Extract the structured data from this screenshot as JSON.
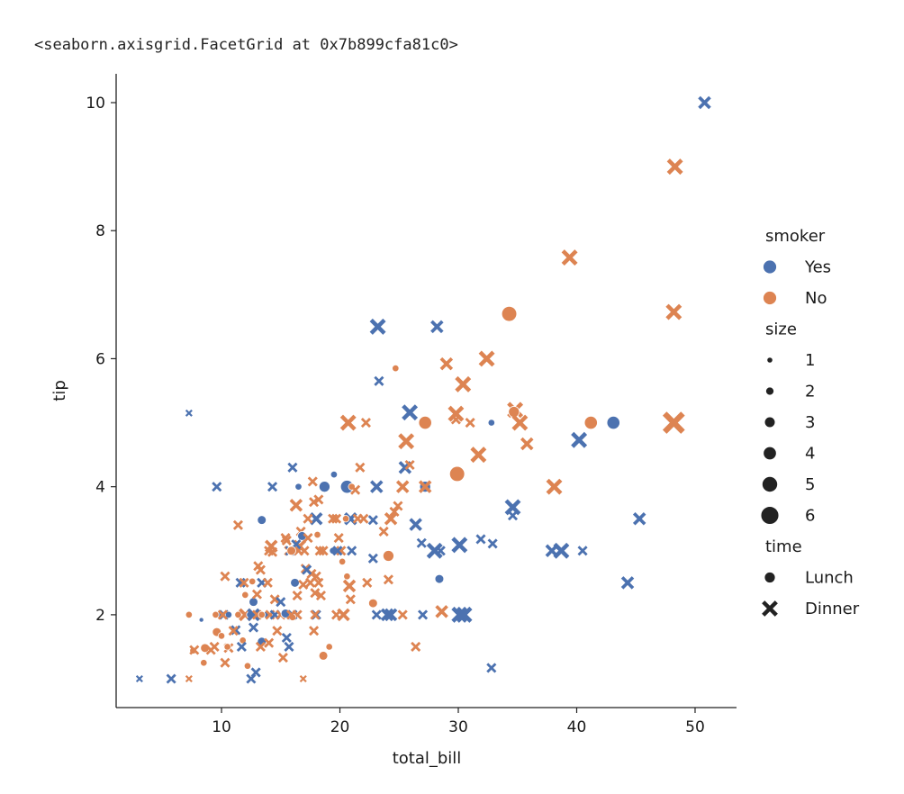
{
  "output_text": "<seaborn.axisgrid.FacetGrid at 0x7b899cfa81c0>",
  "colors": {
    "Yes": "#4c72b0",
    "No": "#dd8452",
    "legend_gray": "#222222"
  },
  "chart_data": {
    "type": "scatter",
    "xlabel": "total_bill",
    "ylabel": "tip",
    "xlim": [
      1.1,
      53.5
    ],
    "ylim": [
      0.55,
      10.45
    ],
    "xticks": [
      10,
      20,
      30,
      40,
      50
    ],
    "yticks": [
      2,
      4,
      6,
      8,
      10
    ],
    "grid": false,
    "legend_placement": "right",
    "fields": [
      "total_bill",
      "tip",
      "smoker",
      "size",
      "time"
    ],
    "legend": {
      "hue": {
        "title": "smoker",
        "entries": [
          "Yes",
          "No"
        ]
      },
      "size": {
        "title": "size",
        "entries": [
          "1",
          "2",
          "3",
          "4",
          "5",
          "6"
        ]
      },
      "style": {
        "title": "time",
        "entries": [
          "Lunch",
          "Dinner"
        ]
      }
    },
    "points": [
      [
        50.8,
        10.0,
        "Yes",
        3,
        "Dinner"
      ],
      [
        48.3,
        9.0,
        "No",
        4,
        "Dinner"
      ],
      [
        39.4,
        7.58,
        "No",
        4,
        "Dinner"
      ],
      [
        48.2,
        6.73,
        "No",
        4,
        "Dinner"
      ],
      [
        34.3,
        6.7,
        "No",
        6,
        "Lunch"
      ],
      [
        23.2,
        6.5,
        "Yes",
        4,
        "Dinner"
      ],
      [
        28.2,
        6.5,
        "Yes",
        3,
        "Dinner"
      ],
      [
        24.7,
        5.85,
        "No",
        2,
        "Lunch"
      ],
      [
        32.4,
        6.0,
        "No",
        4,
        "Dinner"
      ],
      [
        29.0,
        5.92,
        "No",
        3,
        "Dinner"
      ],
      [
        23.3,
        5.65,
        "Yes",
        2,
        "Dinner"
      ],
      [
        30.4,
        5.6,
        "No",
        4,
        "Dinner"
      ],
      [
        7.25,
        5.15,
        "Yes",
        1,
        "Dinner"
      ],
      [
        25.9,
        5.16,
        "Yes",
        4,
        "Dinner"
      ],
      [
        34.8,
        5.2,
        "No",
        4,
        "Dinner"
      ],
      [
        29.8,
        5.14,
        "No",
        4,
        "Dinner"
      ],
      [
        34.7,
        5.17,
        "No",
        4,
        "Lunch"
      ],
      [
        27.2,
        5.0,
        "No",
        5,
        "Lunch"
      ],
      [
        41.2,
        5.0,
        "No",
        5,
        "Lunch"
      ],
      [
        43.1,
        5.0,
        "Yes",
        5,
        "Lunch"
      ],
      [
        48.2,
        5.0,
        "No",
        6,
        "Dinner"
      ],
      [
        20.7,
        5.0,
        "No",
        4,
        "Dinner"
      ],
      [
        22.2,
        5.0,
        "No",
        2,
        "Dinner"
      ],
      [
        29.8,
        5.05,
        "No",
        2,
        "Dinner"
      ],
      [
        31.0,
        5.0,
        "No",
        2,
        "Dinner"
      ],
      [
        32.8,
        5.0,
        "Yes",
        2,
        "Lunch"
      ],
      [
        35.2,
        5.0,
        "No",
        4,
        "Dinner"
      ],
      [
        40.2,
        4.73,
        "Yes",
        4,
        "Dinner"
      ],
      [
        25.6,
        4.71,
        "No",
        4,
        "Dinner"
      ],
      [
        35.8,
        4.67,
        "No",
        3,
        "Dinner"
      ],
      [
        31.7,
        4.5,
        "No",
        4,
        "Dinner"
      ],
      [
        25.5,
        4.3,
        "Yes",
        3,
        "Dinner"
      ],
      [
        25.9,
        4.34,
        "No",
        2,
        "Dinner"
      ],
      [
        29.9,
        4.2,
        "No",
        6,
        "Lunch"
      ],
      [
        16.0,
        4.3,
        "Yes",
        2,
        "Dinner"
      ],
      [
        21.7,
        4.3,
        "No",
        2,
        "Dinner"
      ],
      [
        19.5,
        4.19,
        "Yes",
        2,
        "Lunch"
      ],
      [
        9.6,
        4.0,
        "Yes",
        2,
        "Dinner"
      ],
      [
        14.3,
        4.0,
        "Yes",
        2,
        "Dinner"
      ],
      [
        16.5,
        4.0,
        "Yes",
        2,
        "Lunch"
      ],
      [
        18.7,
        4.0,
        "Yes",
        4,
        "Lunch"
      ],
      [
        20.6,
        4.0,
        "Yes",
        5,
        "Lunch"
      ],
      [
        23.1,
        4.0,
        "Yes",
        3,
        "Dinner"
      ],
      [
        27.2,
        4.0,
        "Yes",
        4,
        "Lunch"
      ],
      [
        27.2,
        4.0,
        "No",
        3,
        "Dinner"
      ],
      [
        38.1,
        4.0,
        "No",
        4,
        "Dinner"
      ],
      [
        17.7,
        4.08,
        "No",
        2,
        "Dinner"
      ],
      [
        21.0,
        4.0,
        "No",
        2,
        "Lunch"
      ],
      [
        25.3,
        4.0,
        "No",
        3,
        "Dinner"
      ],
      [
        21.3,
        3.95,
        "No",
        2,
        "Dinner"
      ],
      [
        17.8,
        3.76,
        "No",
        2,
        "Dinner"
      ],
      [
        18.2,
        3.8,
        "No",
        2,
        "Dinner"
      ],
      [
        16.3,
        3.71,
        "No",
        3,
        "Dinner"
      ],
      [
        24.6,
        3.61,
        "No",
        2,
        "Dinner"
      ],
      [
        24.3,
        3.5,
        "No",
        3,
        "Dinner"
      ],
      [
        34.6,
        3.68,
        "Yes",
        4,
        "Dinner"
      ],
      [
        34.6,
        3.55,
        "Yes",
        2,
        "Dinner"
      ],
      [
        45.3,
        3.5,
        "Yes",
        3,
        "Dinner"
      ],
      [
        13.4,
        3.48,
        "Yes",
        3,
        "Lunch"
      ],
      [
        18.0,
        3.5,
        "Yes",
        3,
        "Dinner"
      ],
      [
        20.9,
        3.5,
        "Yes",
        3,
        "Dinner"
      ],
      [
        22.8,
        3.48,
        "Yes",
        2,
        "Dinner"
      ],
      [
        17.3,
        3.5,
        "No",
        2,
        "Dinner"
      ],
      [
        19.7,
        3.5,
        "No",
        2,
        "Dinner"
      ],
      [
        21.5,
        3.5,
        "No",
        2,
        "Dinner"
      ],
      [
        11.4,
        3.4,
        "No",
        2,
        "Dinner"
      ],
      [
        26.4,
        3.41,
        "Yes",
        3,
        "Dinner"
      ],
      [
        16.7,
        3.3,
        "No",
        2,
        "Dinner"
      ],
      [
        16.8,
        3.23,
        "Yes",
        3,
        "Lunch"
      ],
      [
        15.4,
        3.2,
        "No",
        2,
        "Dinner"
      ],
      [
        17.3,
        3.2,
        "No",
        2,
        "Dinner"
      ],
      [
        18.1,
        3.25,
        "No",
        2,
        "Lunch"
      ],
      [
        19.9,
        3.2,
        "No",
        2,
        "Dinner"
      ],
      [
        26.9,
        3.12,
        "Yes",
        2,
        "Dinner"
      ],
      [
        31.9,
        3.18,
        "Yes",
        2,
        "Dinner"
      ],
      [
        32.9,
        3.11,
        "Yes",
        2,
        "Dinner"
      ],
      [
        30.1,
        3.09,
        "Yes",
        4,
        "Dinner"
      ],
      [
        15.5,
        3.16,
        "No",
        2,
        "Dinner"
      ],
      [
        14.2,
        3.07,
        "No",
        3,
        "Dinner"
      ],
      [
        14.3,
        2.98,
        "No",
        2,
        "Dinner"
      ],
      [
        15.7,
        3.0,
        "No",
        2,
        "Dinner"
      ],
      [
        16.6,
        3.07,
        "No",
        3,
        "Dinner"
      ],
      [
        17.0,
        3.0,
        "No",
        2,
        "Dinner"
      ],
      [
        18.3,
        3.0,
        "No",
        2,
        "Dinner"
      ],
      [
        20.1,
        3.0,
        "No",
        2,
        "Dinner"
      ],
      [
        21.0,
        3.0,
        "Yes",
        2,
        "Dinner"
      ],
      [
        19.4,
        3.0,
        "Yes",
        2,
        "Lunch"
      ],
      [
        15.8,
        3.0,
        "Yes",
        2,
        "Dinner"
      ],
      [
        16.5,
        3.0,
        "No",
        2,
        "Dinner"
      ],
      [
        28.0,
        3.0,
        "Yes",
        4,
        "Dinner"
      ],
      [
        28.5,
        3.0,
        "Yes",
        2,
        "Dinner"
      ],
      [
        37.9,
        3.0,
        "Yes",
        3,
        "Dinner"
      ],
      [
        38.7,
        3.0,
        "Yes",
        4,
        "Dinner"
      ],
      [
        40.5,
        3.0,
        "Yes",
        2,
        "Dinner"
      ],
      [
        24.1,
        2.92,
        "No",
        4,
        "Lunch"
      ],
      [
        20.2,
        2.83,
        "No",
        2,
        "Lunch"
      ],
      [
        22.8,
        2.88,
        "Yes",
        2,
        "Dinner"
      ],
      [
        13.1,
        2.76,
        "No",
        2,
        "Dinner"
      ],
      [
        13.3,
        2.7,
        "No",
        2,
        "Dinner"
      ],
      [
        17.1,
        2.72,
        "No",
        2,
        "Dinner"
      ],
      [
        17.6,
        2.64,
        "No",
        2,
        "Dinner"
      ],
      [
        18.2,
        2.5,
        "No",
        2,
        "Dinner"
      ],
      [
        18.0,
        2.6,
        "No",
        2,
        "Dinner"
      ],
      [
        20.6,
        2.6,
        "No",
        2,
        "Lunch"
      ],
      [
        10.3,
        2.6,
        "No",
        2,
        "Dinner"
      ],
      [
        11.6,
        2.5,
        "Yes",
        2,
        "Dinner"
      ],
      [
        12.6,
        2.52,
        "No",
        2,
        "Lunch"
      ],
      [
        13.4,
        2.5,
        "Yes",
        2,
        "Dinner"
      ],
      [
        16.2,
        2.5,
        "Yes",
        3,
        "Lunch"
      ],
      [
        16.9,
        2.47,
        "No",
        2,
        "Dinner"
      ],
      [
        17.9,
        2.34,
        "No",
        2,
        "Dinner"
      ],
      [
        20.8,
        2.45,
        "No",
        3,
        "Dinner"
      ],
      [
        24.1,
        2.55,
        "No",
        2,
        "Dinner"
      ],
      [
        28.4,
        2.56,
        "Yes",
        3,
        "Lunch"
      ],
      [
        44.3,
        2.5,
        "Yes",
        3,
        "Dinner"
      ],
      [
        12.0,
        2.31,
        "No",
        2,
        "Lunch"
      ],
      [
        12.7,
        2.2,
        "Yes",
        3,
        "Lunch"
      ],
      [
        13.0,
        2.32,
        "No",
        2,
        "Dinner"
      ],
      [
        14.5,
        2.24,
        "No",
        2,
        "Dinner"
      ],
      [
        15.0,
        2.2,
        "Yes",
        2,
        "Dinner"
      ],
      [
        16.4,
        2.3,
        "No",
        2,
        "Dinner"
      ],
      [
        18.4,
        2.3,
        "No",
        2,
        "Dinner"
      ],
      [
        20.9,
        2.24,
        "No",
        2,
        "Dinner"
      ],
      [
        22.8,
        2.18,
        "No",
        3,
        "Lunch"
      ],
      [
        7.25,
        2.0,
        "No",
        2,
        "Lunch"
      ],
      [
        8.3,
        1.92,
        "Yes",
        1,
        "Lunch"
      ],
      [
        9.9,
        2.0,
        "Yes",
        2,
        "Lunch"
      ],
      [
        10.2,
        2.0,
        "Yes",
        2,
        "Dinner"
      ],
      [
        10.6,
        2.0,
        "Yes",
        2,
        "Lunch"
      ],
      [
        11.2,
        1.76,
        "Yes",
        2,
        "Dinner"
      ],
      [
        11.4,
        2.0,
        "No",
        2,
        "Lunch"
      ],
      [
        12.0,
        2.0,
        "No",
        3,
        "Dinner"
      ],
      [
        12.4,
        2.0,
        "Yes",
        2,
        "Lunch"
      ],
      [
        12.7,
        2.0,
        "Yes",
        3,
        "Dinner"
      ],
      [
        13.0,
        2.0,
        "No",
        2,
        "Dinner"
      ],
      [
        13.4,
        1.58,
        "Yes",
        3,
        "Lunch"
      ],
      [
        13.8,
        2.0,
        "Yes",
        2,
        "Lunch"
      ],
      [
        14.1,
        2.0,
        "No",
        2,
        "Dinner"
      ],
      [
        14.5,
        2.0,
        "Yes",
        2,
        "Dinner"
      ],
      [
        15.0,
        2.0,
        "No",
        2,
        "Dinner"
      ],
      [
        15.4,
        2.02,
        "Yes",
        3,
        "Lunch"
      ],
      [
        15.5,
        1.64,
        "Yes",
        2,
        "Dinner"
      ],
      [
        15.7,
        1.5,
        "Yes",
        2,
        "Dinner"
      ],
      [
        16.0,
        2.0,
        "Yes",
        2,
        "Dinner"
      ],
      [
        16.4,
        2.0,
        "No",
        2,
        "Dinner"
      ],
      [
        16.0,
        1.96,
        "No",
        2,
        "Lunch"
      ],
      [
        16.9,
        1.0,
        "No",
        1,
        "Dinner"
      ],
      [
        17.8,
        1.75,
        "No",
        2,
        "Dinner"
      ],
      [
        18.0,
        2.0,
        "Yes",
        2,
        "Dinner"
      ],
      [
        18.6,
        1.36,
        "No",
        3,
        "Lunch"
      ],
      [
        19.1,
        1.5,
        "No",
        2,
        "Lunch"
      ],
      [
        19.7,
        2.0,
        "No",
        2,
        "Dinner"
      ],
      [
        20.3,
        2.0,
        "No",
        3,
        "Dinner"
      ],
      [
        23.1,
        2.0,
        "Yes",
        2,
        "Dinner"
      ],
      [
        24.0,
        2.0,
        "Yes",
        3,
        "Dinner"
      ],
      [
        24.3,
        2.0,
        "Yes",
        3,
        "Dinner"
      ],
      [
        25.3,
        2.0,
        "No",
        2,
        "Dinner"
      ],
      [
        26.4,
        1.5,
        "No",
        2,
        "Dinner"
      ],
      [
        27.0,
        2.0,
        "Yes",
        2,
        "Dinner"
      ],
      [
        28.6,
        2.05,
        "No",
        3,
        "Dinner"
      ],
      [
        30.1,
        2.0,
        "Yes",
        4,
        "Dinner"
      ],
      [
        30.5,
        2.0,
        "Yes",
        4,
        "Dinner"
      ],
      [
        32.8,
        1.17,
        "Yes",
        2,
        "Dinner"
      ],
      [
        7.6,
        1.44,
        "No",
        2,
        "Lunch"
      ],
      [
        7.7,
        1.45,
        "No",
        2,
        "Dinner"
      ],
      [
        8.5,
        1.25,
        "No",
        2,
        "Lunch"
      ],
      [
        8.6,
        1.48,
        "No",
        3,
        "Lunch"
      ],
      [
        9.1,
        1.45,
        "No",
        2,
        "Dinner"
      ],
      [
        9.6,
        1.73,
        "No",
        3,
        "Lunch"
      ],
      [
        10.0,
        1.67,
        "No",
        2,
        "Lunch"
      ],
      [
        10.3,
        1.25,
        "No",
        2,
        "Dinner"
      ],
      [
        10.6,
        1.48,
        "No",
        2,
        "Dinner"
      ],
      [
        11.0,
        1.75,
        "No",
        2,
        "Dinner"
      ],
      [
        11.8,
        1.6,
        "No",
        2,
        "Lunch"
      ],
      [
        12.2,
        1.2,
        "No",
        2,
        "Lunch"
      ],
      [
        12.5,
        1.0,
        "Yes",
        2,
        "Dinner"
      ],
      [
        12.9,
        1.1,
        "Yes",
        2,
        "Dinner"
      ],
      [
        13.3,
        1.5,
        "No",
        2,
        "Dinner"
      ],
      [
        14.0,
        1.56,
        "No",
        2,
        "Dinner"
      ],
      [
        14.7,
        1.75,
        "No",
        2,
        "Dinner"
      ],
      [
        15.2,
        1.33,
        "No",
        2,
        "Dinner"
      ],
      [
        3.07,
        1.0,
        "Yes",
        1,
        "Dinner"
      ],
      [
        5.75,
        1.0,
        "Yes",
        2,
        "Dinner"
      ],
      [
        7.25,
        1.0,
        "No",
        1,
        "Dinner"
      ],
      [
        9.4,
        1.5,
        "No",
        2,
        "Dinner"
      ],
      [
        10.1,
        2.0,
        "No",
        2,
        "Dinner"
      ],
      [
        10.5,
        1.5,
        "No",
        2,
        "Lunch"
      ],
      [
        11.9,
        2.5,
        "No",
        2,
        "Dinner"
      ],
      [
        13.4,
        2.0,
        "No",
        2,
        "Lunch"
      ],
      [
        14.0,
        3.0,
        "No",
        2,
        "Dinner"
      ],
      [
        15.9,
        2.0,
        "No",
        2,
        "Dinner"
      ],
      [
        17.5,
        2.5,
        "No",
        2,
        "Dinner"
      ],
      [
        18.6,
        3.0,
        "No",
        2,
        "Dinner"
      ],
      [
        19.4,
        3.5,
        "No",
        2,
        "Dinner"
      ],
      [
        20.5,
        3.5,
        "No",
        2,
        "Lunch"
      ],
      [
        22.3,
        2.5,
        "No",
        2,
        "Dinner"
      ],
      [
        23.7,
        3.3,
        "No",
        2,
        "Dinner"
      ],
      [
        24.9,
        3.7,
        "No",
        2,
        "Dinner"
      ],
      [
        16.3,
        3.1,
        "Yes",
        2,
        "Dinner"
      ],
      [
        17.2,
        2.7,
        "Yes",
        2,
        "Dinner"
      ],
      [
        12.7,
        1.8,
        "Yes",
        2,
        "Dinner"
      ],
      [
        19.8,
        3.0,
        "Yes",
        2,
        "Dinner"
      ],
      [
        9.5,
        2.0,
        "No",
        2,
        "Lunch"
      ],
      [
        11.7,
        1.5,
        "Yes",
        2,
        "Dinner"
      ],
      [
        13.9,
        2.5,
        "No",
        2,
        "Dinner"
      ],
      [
        15.9,
        3.0,
        "No",
        3,
        "Lunch"
      ],
      [
        17.9,
        2.0,
        "No",
        2,
        "Dinner"
      ],
      [
        22.0,
        3.5,
        "No",
        2,
        "Dinner"
      ]
    ]
  }
}
